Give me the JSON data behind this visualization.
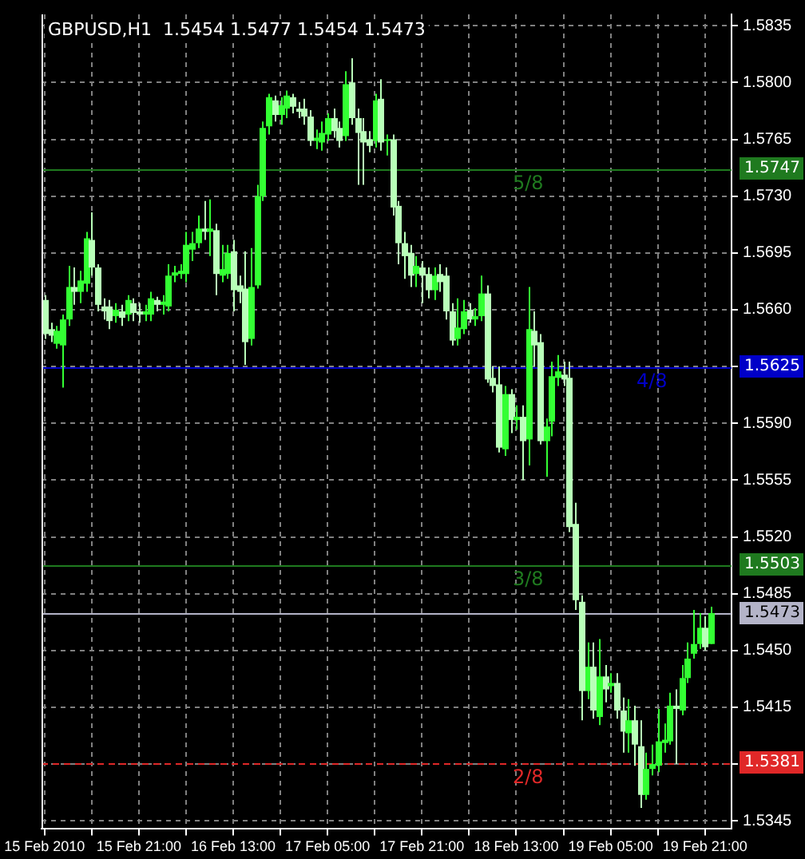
{
  "chart_data": {
    "type": "candlestick",
    "title": "GBPUSD,H1  1.5454 1.5477 1.5454 1.5473",
    "grid": true,
    "colors": [
      "#b8ffb8",
      "#b8ffb8",
      "#33ff33",
      "#33ff33",
      "#33ff33",
      "#b8ffb8",
      "#33ff33",
      "#33ff33",
      "#b8ffb8",
      "#b8ffb8",
      "#b8ffb8",
      "#b8ffb8",
      "#33ff33",
      "#b8ffb8",
      "#33ff33",
      "#b8ffb8",
      "#b8ffb8",
      "#33ff33",
      "#33ff33",
      "#b8ffb8",
      "#33ff33",
      "#33ff33",
      "#33ff33",
      "#33ff33",
      "#33ff33",
      "#33ff33",
      "#33ff33",
      "#b8ffb8",
      "#33ff33",
      "#b8ffb8",
      "#33ff33",
      "#33ff33",
      "#b8ffb8",
      "#b8ffb8",
      "#b8ffb8",
      "#33ff33",
      "#33ff33",
      "#33ff33",
      "#33ff33",
      "#b8ffb8",
      "#33ff33",
      "#33ff33",
      "#b8ffb8",
      "#b8ffb8",
      "#b8ffb8",
      "#b8ffb8",
      "#33ff33",
      "#33ff33",
      "#33ff33",
      "#b8ffb8",
      "#b8ffb8",
      "#33ff33",
      "#b8ffb8",
      "#b8ffb8",
      "#b8ffb8",
      "#b8ffb8",
      "#33ff33",
      "#b8ffb8",
      "#33ff33",
      "#b8ffb8",
      "#b8ffb8",
      "#b8ffb8",
      "#b8ffb8",
      "#33ff33",
      "#b8ffb8",
      "#b8ffb8",
      "#33ff33",
      "#b8ffb8",
      "#b8ffb8",
      "#b8ffb8",
      "#33ff33",
      "#33ff33",
      "#b8ffb8",
      "#33ff33",
      "#33ff33",
      "#b8ffb8",
      "#b8ffb8",
      "#b8ffb8",
      "#33ff33",
      "#b8ffb8",
      "#33ff33",
      "#b8ffb8",
      "#33ff33",
      "#b8ffb8",
      "#b8ffb8",
      "#33ff33",
      "#33ff33",
      "#33ff33",
      "#b8ffb8",
      "#b8ffb8",
      "#b8ffb8",
      "#b8ffb8",
      "#33ff33",
      "#b8ffb8",
      "#33ff33",
      "#b8ffb8",
      "#33ff33",
      "#b8ffb8",
      "#b8ffb8",
      "#33ff33",
      "#b8ffb8",
      "#b8ffb8",
      "#33ff33",
      "#33ff33",
      "#33ff33",
      "#33ff33",
      "#33ff33",
      "#b8ffb8",
      "#33ff33",
      "#33ff33",
      "#33ff33",
      "#33ff33",
      "#b8ffb8",
      "#33ff33"
    ],
    "x": [
      "2010-02-15T05:00",
      "2010-02-15T06:00",
      "2010-02-15T07:00",
      "2010-02-15T08:00",
      "2010-02-15T09:00",
      "2010-02-15T10:00",
      "2010-02-15T11:00",
      "2010-02-15T12:00",
      "2010-02-15T13:00",
      "2010-02-15T14:00",
      "2010-02-15T15:00",
      "2010-02-15T16:00",
      "2010-02-15T17:00",
      "2010-02-15T18:00",
      "2010-02-15T19:00",
      "2010-02-15T20:00",
      "2010-02-15T21:00",
      "2010-02-15T22:00",
      "2010-02-15T23:00",
      "2010-02-16T00:00",
      "2010-02-16T01:00",
      "2010-02-16T02:00",
      "2010-02-16T03:00",
      "2010-02-16T04:00",
      "2010-02-16T05:00",
      "2010-02-16T06:00",
      "2010-02-16T07:00",
      "2010-02-16T08:00",
      "2010-02-16T09:00",
      "2010-02-16T10:00",
      "2010-02-16T11:00",
      "2010-02-16T12:00",
      "2010-02-16T13:00",
      "2010-02-16T14:00",
      "2010-02-16T15:00",
      "2010-02-16T16:00",
      "2010-02-16T17:00",
      "2010-02-16T18:00",
      "2010-02-16T19:00",
      "2010-02-16T20:00",
      "2010-02-16T21:00",
      "2010-02-16T22:00",
      "2010-02-16T23:00",
      "2010-02-17T00:00",
      "2010-02-17T01:00",
      "2010-02-17T02:00",
      "2010-02-17T03:00",
      "2010-02-17T04:00",
      "2010-02-17T05:00",
      "2010-02-17T06:00",
      "2010-02-17T07:00",
      "2010-02-17T08:00",
      "2010-02-17T09:00",
      "2010-02-17T10:00",
      "2010-02-17T11:00",
      "2010-02-17T12:00",
      "2010-02-17T13:00",
      "2010-02-17T14:00",
      "2010-02-17T15:00",
      "2010-02-17T16:00",
      "2010-02-17T17:00",
      "2010-02-17T18:00",
      "2010-02-17T19:00",
      "2010-02-17T20:00",
      "2010-02-17T21:00",
      "2010-02-17T22:00",
      "2010-02-17T23:00",
      "2010-02-18T00:00",
      "2010-02-18T01:00",
      "2010-02-18T02:00",
      "2010-02-18T03:00",
      "2010-02-18T04:00",
      "2010-02-18T05:00",
      "2010-02-18T06:00",
      "2010-02-18T07:00",
      "2010-02-18T08:00",
      "2010-02-18T09:00",
      "2010-02-18T10:00",
      "2010-02-18T11:00",
      "2010-02-18T12:00",
      "2010-02-18T13:00",
      "2010-02-18T14:00",
      "2010-02-18T15:00",
      "2010-02-18T16:00",
      "2010-02-18T17:00",
      "2010-02-18T18:00",
      "2010-02-18T19:00",
      "2010-02-18T20:00",
      "2010-02-18T21:00",
      "2010-02-18T22:00",
      "2010-02-18T23:00",
      "2010-02-19T00:00",
      "2010-02-19T01:00",
      "2010-02-19T02:00",
      "2010-02-19T03:00",
      "2010-02-19T04:00",
      "2010-02-19T05:00",
      "2010-02-19T06:00",
      "2010-02-19T07:00",
      "2010-02-19T08:00",
      "2010-02-19T09:00",
      "2010-02-19T10:00",
      "2010-02-19T11:00",
      "2010-02-19T12:00",
      "2010-02-19T13:00",
      "2010-02-19T14:00",
      "2010-02-19T15:00",
      "2010-02-19T16:00",
      "2010-02-19T17:00",
      "2010-02-19T18:00",
      "2010-02-19T19:00",
      "2010-02-19T20:00",
      "2010-02-19T21:00",
      "2010-02-19T22:00"
    ],
    "ohlc": [
      [
        1.5666,
        1.5669,
        1.5642,
        1.5645
      ],
      [
        1.5648,
        1.5652,
        1.564,
        1.5644
      ],
      [
        1.5639,
        1.565,
        1.5636,
        1.5647
      ],
      [
        1.5638,
        1.5657,
        1.5612,
        1.5654
      ],
      [
        1.5654,
        1.5687,
        1.565,
        1.5674
      ],
      [
        1.5674,
        1.5686,
        1.5663,
        1.5671
      ],
      [
        1.5671,
        1.5684,
        1.5664,
        1.5678
      ],
      [
        1.5676,
        1.5708,
        1.5671,
        1.5704
      ],
      [
        1.5703,
        1.572,
        1.5681,
        1.5686
      ],
      [
        1.5686,
        1.5688,
        1.5659,
        1.5663
      ],
      [
        1.5662,
        1.5667,
        1.5654,
        1.5659
      ],
      [
        1.5662,
        1.5666,
        1.5648,
        1.5653
      ],
      [
        1.5656,
        1.5664,
        1.5652,
        1.566
      ],
      [
        1.5659,
        1.5663,
        1.565,
        1.5655
      ],
      [
        1.5657,
        1.5669,
        1.5653,
        1.5666
      ],
      [
        1.5664,
        1.5667,
        1.5653,
        1.5658
      ],
      [
        1.5659,
        1.5664,
        1.5652,
        1.5657
      ],
      [
        1.5657,
        1.5663,
        1.5653,
        1.5659
      ],
      [
        1.5657,
        1.5671,
        1.5653,
        1.5667
      ],
      [
        1.5666,
        1.5668,
        1.5659,
        1.5663
      ],
      [
        1.5663,
        1.5669,
        1.5657,
        1.5665
      ],
      [
        1.5662,
        1.5688,
        1.5659,
        1.5681
      ],
      [
        1.5681,
        1.5687,
        1.5677,
        1.5683
      ],
      [
        1.5682,
        1.5688,
        1.5679,
        1.5684
      ],
      [
        1.5682,
        1.5708,
        1.5677,
        1.57
      ],
      [
        1.5697,
        1.5708,
        1.569,
        1.5701
      ],
      [
        1.5701,
        1.5718,
        1.5698,
        1.571
      ],
      [
        1.571,
        1.5727,
        1.5703,
        1.5708
      ],
      [
        1.5708,
        1.5728,
        1.5693,
        1.571
      ],
      [
        1.5709,
        1.5713,
        1.5669,
        1.5682
      ],
      [
        1.5681,
        1.57,
        1.5677,
        1.5685
      ],
      [
        1.5682,
        1.57,
        1.5679,
        1.5695
      ],
      [
        1.5696,
        1.5703,
        1.5659,
        1.5672
      ],
      [
        1.5675,
        1.5681,
        1.5664,
        1.5671
      ],
      [
        1.5673,
        1.5696,
        1.5626,
        1.564
      ],
      [
        1.5642,
        1.5698,
        1.5638,
        1.5674
      ],
      [
        1.5675,
        1.5737,
        1.5673,
        1.573
      ],
      [
        1.573,
        1.5776,
        1.5727,
        1.5772
      ],
      [
        1.5773,
        1.5793,
        1.5768,
        1.5791
      ],
      [
        1.5789,
        1.5792,
        1.5776,
        1.578
      ],
      [
        1.578,
        1.5791,
        1.5774,
        1.5786
      ],
      [
        1.5784,
        1.5795,
        1.5778,
        1.5792
      ],
      [
        1.5791,
        1.5793,
        1.5781,
        1.5785
      ],
      [
        1.5784,
        1.5788,
        1.5778,
        1.5782
      ],
      [
        1.5784,
        1.579,
        1.5774,
        1.5779
      ],
      [
        1.5779,
        1.5783,
        1.5761,
        1.5764
      ],
      [
        1.5764,
        1.5771,
        1.5759,
        1.5766
      ],
      [
        1.5763,
        1.5776,
        1.5758,
        1.5769
      ],
      [
        1.5768,
        1.5781,
        1.5764,
        1.5778
      ],
      [
        1.5778,
        1.5784,
        1.5766,
        1.577
      ],
      [
        1.5772,
        1.5776,
        1.576,
        1.5764
      ],
      [
        1.5767,
        1.5807,
        1.5764,
        1.5799
      ],
      [
        1.58,
        1.5815,
        1.5774,
        1.5778
      ],
      [
        1.5778,
        1.5784,
        1.5737,
        1.5769
      ],
      [
        1.577,
        1.5778,
        1.5737,
        1.5763
      ],
      [
        1.5765,
        1.577,
        1.5757,
        1.5761
      ],
      [
        1.5764,
        1.5793,
        1.576,
        1.5789
      ],
      [
        1.579,
        1.5802,
        1.5758,
        1.5763
      ],
      [
        1.5764,
        1.5768,
        1.5755,
        1.5765
      ],
      [
        1.5765,
        1.5768,
        1.5718,
        1.5723
      ],
      [
        1.5724,
        1.5727,
        1.5688,
        1.5701
      ],
      [
        1.5701,
        1.5708,
        1.5679,
        1.5693
      ],
      [
        1.5695,
        1.57,
        1.5674,
        1.5681
      ],
      [
        1.5682,
        1.5693,
        1.5674,
        1.5687
      ],
      [
        1.5686,
        1.569,
        1.5664,
        1.5681
      ],
      [
        1.5682,
        1.5686,
        1.5667,
        1.5672
      ],
      [
        1.5672,
        1.5686,
        1.5666,
        1.5681
      ],
      [
        1.5682,
        1.5688,
        1.5671,
        1.5677
      ],
      [
        1.5681,
        1.5686,
        1.5654,
        1.5659
      ],
      [
        1.5659,
        1.5664,
        1.5638,
        1.5641
      ],
      [
        1.5642,
        1.5667,
        1.5638,
        1.5649
      ],
      [
        1.5648,
        1.5666,
        1.5645,
        1.5659
      ],
      [
        1.566,
        1.5664,
        1.5652,
        1.5654
      ],
      [
        1.5654,
        1.5661,
        1.565,
        1.5656
      ],
      [
        1.5656,
        1.5681,
        1.5653,
        1.567
      ],
      [
        1.567,
        1.5675,
        1.5615,
        1.5617
      ],
      [
        1.5618,
        1.5625,
        1.5609,
        1.5613
      ],
      [
        1.5614,
        1.5625,
        1.5572,
        1.5575
      ],
      [
        1.5574,
        1.5613,
        1.557,
        1.5608
      ],
      [
        1.5608,
        1.5611,
        1.5584,
        1.5592
      ],
      [
        1.5592,
        1.5601,
        1.5586,
        1.5594
      ],
      [
        1.5594,
        1.5601,
        1.5555,
        1.5579
      ],
      [
        1.558,
        1.5674,
        1.5564,
        1.5648
      ],
      [
        1.5647,
        1.5659,
        1.5625,
        1.5638
      ],
      [
        1.564,
        1.5645,
        1.5577,
        1.5579
      ],
      [
        1.5579,
        1.5593,
        1.5557,
        1.5588
      ],
      [
        1.5591,
        1.5628,
        1.5582,
        1.5619
      ],
      [
        1.5618,
        1.5632,
        1.5613,
        1.5622
      ],
      [
        1.562,
        1.5628,
        1.5613,
        1.5617
      ],
      [
        1.5618,
        1.5628,
        1.5523,
        1.5526
      ],
      [
        1.5528,
        1.5541,
        1.5475,
        1.5481
      ],
      [
        1.548,
        1.5484,
        1.5407,
        1.5425
      ],
      [
        1.5425,
        1.5455,
        1.542,
        1.544
      ],
      [
        1.544,
        1.5455,
        1.5408,
        1.5413
      ],
      [
        1.5409,
        1.5457,
        1.5404,
        1.5434
      ],
      [
        1.5434,
        1.5441,
        1.5418,
        1.5426
      ],
      [
        1.5428,
        1.5436,
        1.5424,
        1.543
      ],
      [
        1.543,
        1.5436,
        1.5408,
        1.5413
      ],
      [
        1.5413,
        1.5421,
        1.5387,
        1.54
      ],
      [
        1.5399,
        1.542,
        1.5387,
        1.5407
      ],
      [
        1.5407,
        1.5416,
        1.5379,
        1.5392
      ],
      [
        1.5391,
        1.5407,
        1.5353,
        1.5361
      ],
      [
        1.5361,
        1.5387,
        1.5358,
        1.5377
      ],
      [
        1.5377,
        1.5392,
        1.5373,
        1.538
      ],
      [
        1.5379,
        1.5414,
        1.5375,
        1.5394
      ],
      [
        1.5393,
        1.5405,
        1.5387,
        1.5395
      ],
      [
        1.5394,
        1.5424,
        1.5392,
        1.5416
      ],
      [
        1.5416,
        1.5426,
        1.538,
        1.5414
      ],
      [
        1.5413,
        1.5441,
        1.541,
        1.5433
      ],
      [
        1.5433,
        1.5455,
        1.543,
        1.5445
      ],
      [
        1.5448,
        1.5475,
        1.5445,
        1.5454
      ],
      [
        1.5454,
        1.5473,
        1.5451,
        1.5464
      ],
      [
        1.5464,
        1.5471,
        1.545,
        1.5452
      ],
      [
        1.5454,
        1.5477,
        1.5454,
        1.5473
      ]
    ],
    "xlim": [
      "2010-02-15T04:30",
      "2010-02-20T01:30"
    ],
    "xticks": [
      {
        "value": "2010-02-15T05:00",
        "label": "15 Feb 2010"
      },
      {
        "value": "2010-02-15T13:00",
        "label": null
      },
      {
        "value": "2010-02-15T21:00",
        "label": "15 Feb 21:00"
      },
      {
        "value": "2010-02-16T05:00",
        "label": null
      },
      {
        "value": "2010-02-16T13:00",
        "label": "16 Feb 13:00"
      },
      {
        "value": "2010-02-16T21:00",
        "label": null
      },
      {
        "value": "2010-02-17T05:00",
        "label": "17 Feb 05:00"
      },
      {
        "value": "2010-02-17T13:00",
        "label": null
      },
      {
        "value": "2010-02-17T21:00",
        "label": "17 Feb 21:00"
      },
      {
        "value": "2010-02-18T05:00",
        "label": null
      },
      {
        "value": "2010-02-18T13:00",
        "label": "18 Feb 13:00"
      },
      {
        "value": "2010-02-18T21:00",
        "label": null
      },
      {
        "value": "2010-02-19T05:00",
        "label": "19 Feb 05:00"
      },
      {
        "value": "2010-02-19T13:00",
        "label": null
      },
      {
        "value": "2010-02-19T21:00",
        "label": "19 Feb 21:00"
      }
    ],
    "ylim": [
      1.534,
      1.5842
    ],
    "yticks": [
      1.5345,
      {
        "value": 1.538,
        "label": null
      },
      1.5415,
      {
        "value": 1.545,
        "label": "1.5450"
      },
      1.5485,
      {
        "value": 1.552,
        "label": "1.5520"
      },
      1.5555,
      {
        "value": 1.559,
        "label": "1.5590"
      },
      {
        "value": 1.5625,
        "label": null
      },
      {
        "value": 1.566,
        "label": "1.5660"
      },
      1.5695,
      {
        "value": 1.573,
        "label": "1.5730"
      },
      1.5765,
      {
        "value": 1.58,
        "label": "1.5800"
      },
      1.5835
    ],
    "ref_lines": [
      {
        "axis": "y",
        "value": 1.5747,
        "label": "1.5747",
        "color": "#1f7a1f"
      },
      {
        "axis": "y",
        "value": 1.5625,
        "label": "1.5625",
        "color": "#0000c8"
      },
      {
        "axis": "y",
        "value": 1.5503,
        "label": "1.5503",
        "color": "#1f7a1f"
      },
      {
        "axis": "y",
        "value": 1.5473,
        "label": "1.5473",
        "color": "#b4b4c8"
      },
      {
        "axis": "y",
        "value": 1.5381,
        "label": "1.5381",
        "color": "#e02828",
        "line_style": "dashed"
      }
    ],
    "annotations": [
      {
        "text": "5/8",
        "x": "2010-02-18T15:00",
        "y": 1.5747
      },
      {
        "text": "4/8",
        "x": "2010-02-19T12:00",
        "y": 1.5625
      },
      {
        "text": "3/8",
        "x": "2010-02-18T15:00",
        "y": 1.5503
      },
      {
        "text": "2/8",
        "x": "2010-02-18T15:00",
        "y": 1.5381
      }
    ]
  }
}
